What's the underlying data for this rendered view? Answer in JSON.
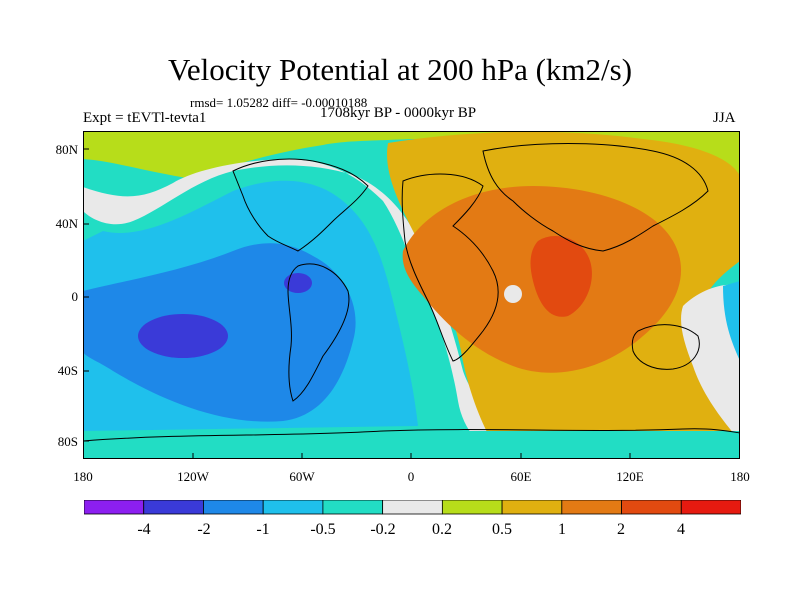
{
  "title": "Velocity Potential at 200 hPa (km2/s)",
  "stats": "rmsd= 1.05282 diff= -0.00010188",
  "experiment": "Expt = tEVTl-tevta1",
  "period": "1708kyr BP - 0000kyr BP",
  "season": "JJA",
  "y_axis_labels": [
    "80N",
    "40N",
    "0",
    "40S",
    "80S"
  ],
  "x_axis_labels": [
    "180",
    "120W",
    "60W",
    "0",
    "60E",
    "120E",
    "180"
  ],
  "colorbar": {
    "labels": [
      "-4",
      "-2",
      "-1",
      "-0.5",
      "-0.2",
      "0.2",
      "0.5",
      "1",
      "2",
      "4"
    ],
    "colors": [
      "#8c1ff0",
      "#3a3ad8",
      "#1e88e8",
      "#1fc0ec",
      "#22ddc4",
      "#e9e9e9",
      "#b7dd1a",
      "#e0b010",
      "#e37a14",
      "#e24a10",
      "#e61a10"
    ]
  },
  "palette": {
    "land_outline": "#000000",
    "background": "#ffffff"
  }
}
